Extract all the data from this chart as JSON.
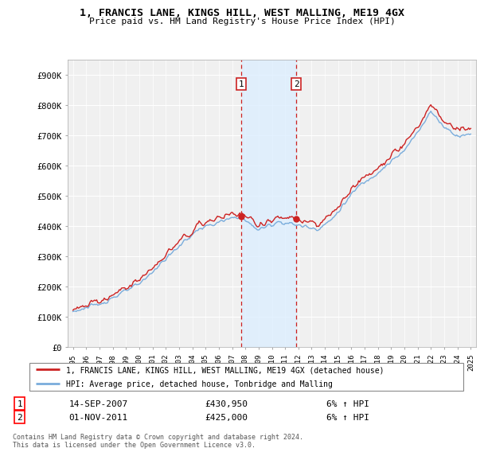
{
  "title": "1, FRANCIS LANE, KINGS HILL, WEST MALLING, ME19 4GX",
  "subtitle": "Price paid vs. HM Land Registry's House Price Index (HPI)",
  "legend_line1": "1, FRANCIS LANE, KINGS HILL, WEST MALLING, ME19 4GX (detached house)",
  "legend_line2": "HPI: Average price, detached house, Tonbridge and Malling",
  "footnote": "Contains HM Land Registry data © Crown copyright and database right 2024.\nThis data is licensed under the Open Government Licence v3.0.",
  "transaction1_label": "1",
  "transaction1_date": "14-SEP-2007",
  "transaction1_price": "£430,950",
  "transaction1_hpi": "6% ↑ HPI",
  "transaction2_label": "2",
  "transaction2_date": "01-NOV-2011",
  "transaction2_price": "£425,000",
  "transaction2_hpi": "6% ↑ HPI",
  "hpi_color": "#7aaddc",
  "price_color": "#cc2222",
  "shade_color": "#ddeeff",
  "vline_color": "#cc2222",
  "background_color": "#f0f0f0",
  "grid_color": "#ffffff",
  "ylim": [
    0,
    950000
  ],
  "ytick_vals": [
    0,
    100000,
    200000,
    300000,
    400000,
    500000,
    600000,
    700000,
    800000,
    900000
  ],
  "ytick_labels": [
    "£0",
    "£100K",
    "£200K",
    "£300K",
    "£400K",
    "£500K",
    "£600K",
    "£700K",
    "£800K",
    "£900K"
  ],
  "t1_x": 2007.708,
  "t1_y": 430950,
  "t2_x": 2011.833,
  "t2_y": 425000,
  "xmin": 1994.6,
  "xmax": 2025.4
}
